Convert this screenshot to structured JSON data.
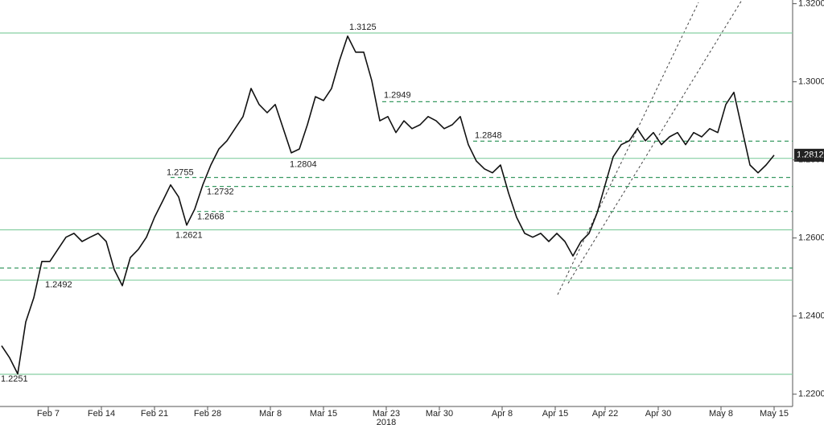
{
  "chart_data": {
    "type": "line",
    "color": "#111111",
    "values": [
      1.2324,
      1.2293,
      1.2252,
      1.2385,
      1.2447,
      1.254,
      1.254,
      1.2571,
      1.2602,
      1.2612,
      1.2591,
      1.2602,
      1.2612,
      1.2591,
      1.2519,
      1.2478,
      1.255,
      1.2571,
      1.2602,
      1.2653,
      1.2694,
      1.2736,
      1.2705,
      1.2633,
      1.2674,
      1.2736,
      1.2787,
      1.2828,
      1.2849,
      1.288,
      1.2911,
      1.2983,
      1.2942,
      1.2921,
      1.2942,
      1.288,
      1.2818,
      1.2828,
      1.289,
      1.2962,
      1.2952,
      1.2983,
      1.3055,
      1.3117,
      1.3076,
      1.3076,
      1.3003,
      1.29,
      1.2911,
      1.287,
      1.29,
      1.288,
      1.289,
      1.2911,
      1.29,
      1.288,
      1.289,
      1.2911,
      1.2839,
      1.2797,
      1.2777,
      1.2767,
      1.2787,
      1.2715,
      1.2653,
      1.2612,
      1.2602,
      1.2612,
      1.2591,
      1.2612,
      1.2591,
      1.2554,
      1.2591,
      1.2612,
      1.2664,
      1.2736,
      1.2808,
      1.2839,
      1.2849,
      1.288,
      1.2849,
      1.287,
      1.2839,
      1.2859,
      1.287,
      1.2839,
      1.287,
      1.2859,
      1.288,
      1.287,
      1.2942,
      1.2973,
      1.288,
      1.2787,
      1.2767,
      1.2787,
      1.2812
    ],
    "xlim": [
      -0.2,
      98.3
    ],
    "xticks": [
      {
        "value": 5.8,
        "label": "Feb 7"
      },
      {
        "value": 12.4,
        "label": "Feb 14"
      },
      {
        "value": 19.0,
        "label": "Feb 21"
      },
      {
        "value": 25.6,
        "label": "Feb 28"
      },
      {
        "value": 33.4,
        "label": "Mar 8"
      },
      {
        "value": 40.0,
        "label": "Mar 15"
      },
      {
        "value": 47.8,
        "label": "Mar 23"
      },
      {
        "value": 54.4,
        "label": "Mar 30"
      },
      {
        "value": 62.2,
        "label": "Apr 8"
      },
      {
        "value": 68.8,
        "label": "Apr 15"
      },
      {
        "value": 75.0,
        "label": "Apr 22"
      },
      {
        "value": 81.6,
        "label": "Apr 30"
      },
      {
        "value": 89.4,
        "label": "May 8"
      },
      {
        "value": 96.0,
        "label": "May 15"
      }
    ],
    "year_label": "2018",
    "ylim": [
      1.21685,
      1.32095
    ],
    "yticks": [
      {
        "value": 1.22,
        "label": "1.2200"
      },
      {
        "value": 1.24,
        "label": "1.2400"
      },
      {
        "value": 1.26,
        "label": "1.2600"
      },
      {
        "value": 1.28,
        "label": "1.2800"
      },
      {
        "value": 1.3,
        "label": "1.3000"
      },
      {
        "value": 1.32,
        "label": "1.3200"
      }
    ],
    "levels": {
      "values": [
        1.3125,
        1.2949,
        1.2848,
        1.2804,
        1.2755,
        1.2732,
        1.2668,
        1.2621,
        1.2523,
        1.2492,
        1.2251
      ],
      "styles": [
        "solid",
        "dashed",
        "dashed",
        "solid",
        "dashed",
        "dashed",
        "dashed",
        "solid",
        "dashed",
        "solid",
        "solid"
      ],
      "solid_color": "#86cfa2",
      "dashed_color": "#3a9a63"
    }
  }
}
